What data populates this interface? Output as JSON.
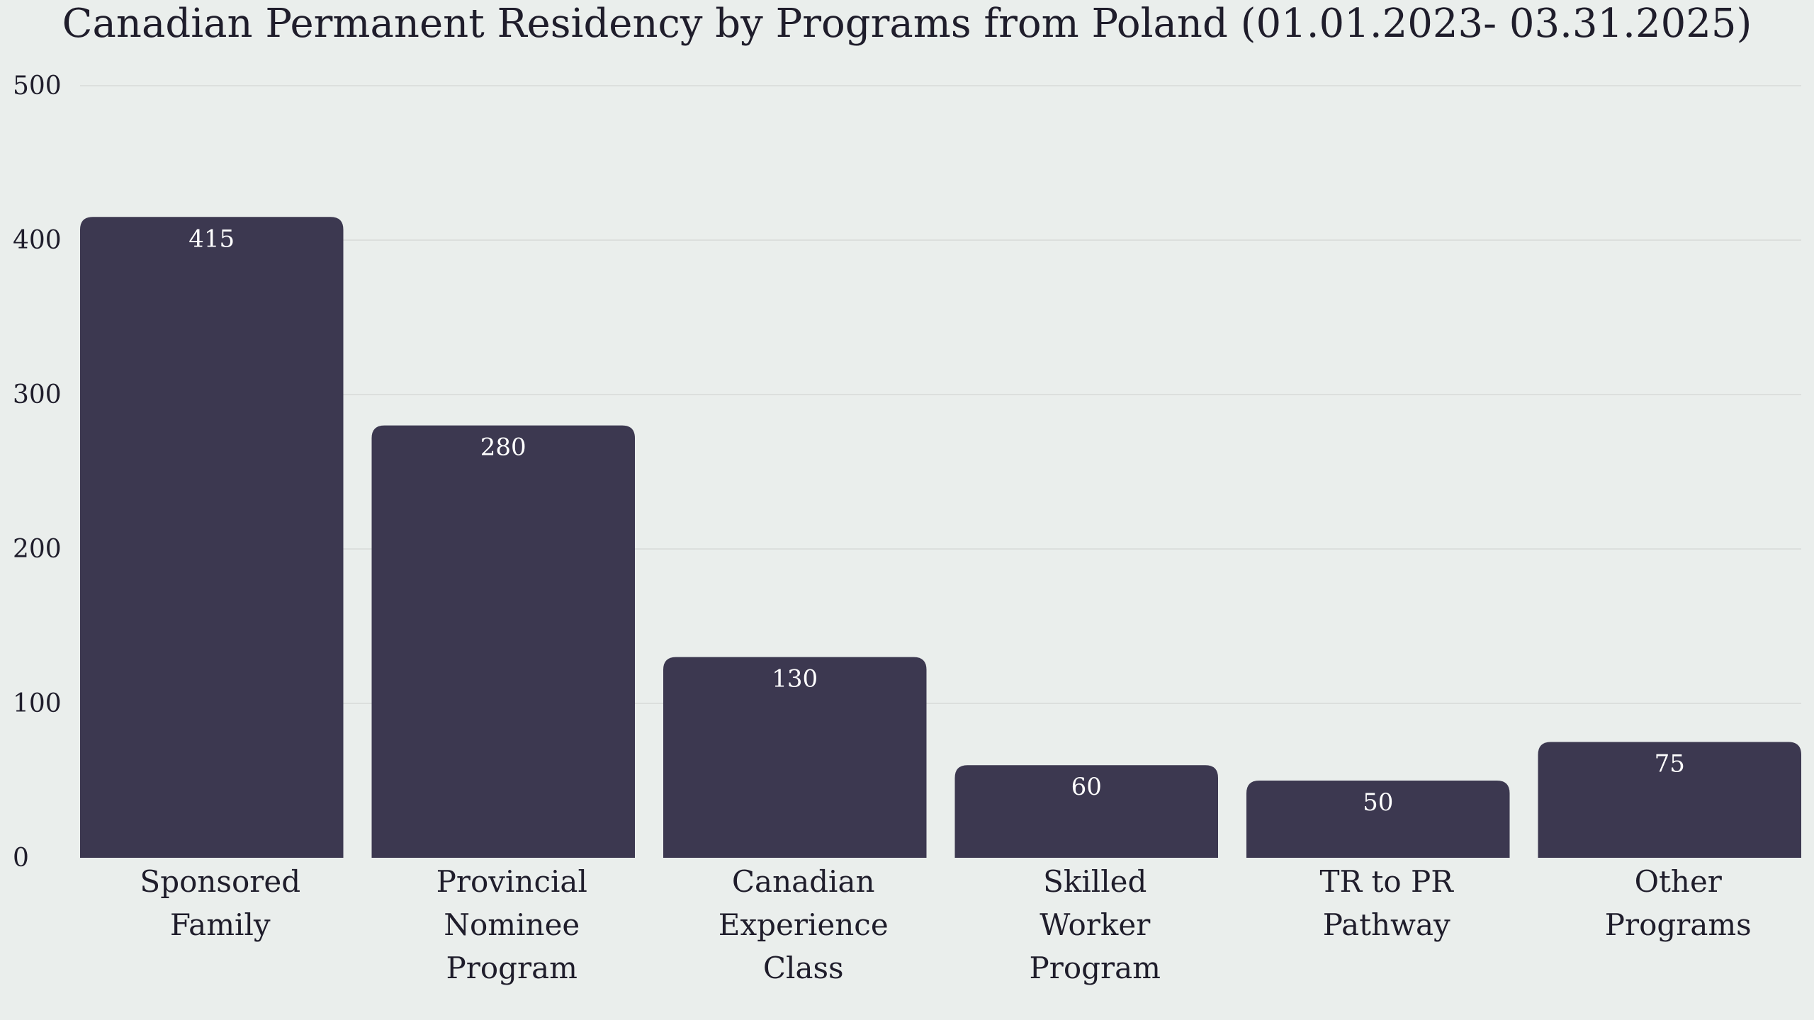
{
  "chart_data": {
    "type": "bar",
    "title": "Canadian Permanent Residency by Programs from Poland (01.01.2023- 03.31.2025)",
    "xlabel": "",
    "ylabel": "",
    "categories": [
      [
        "Sponsored",
        "Family"
      ],
      [
        "Provincial",
        "Nominee",
        "Program"
      ],
      [
        "Canadian",
        "Experience",
        "Class"
      ],
      [
        "Skilled",
        "Worker",
        "Program"
      ],
      [
        "TR to PR",
        "Pathway"
      ],
      [
        "Other",
        "Programs"
      ]
    ],
    "values": [
      415,
      280,
      130,
      60,
      50,
      75
    ],
    "ylim": [
      0,
      500
    ],
    "yticks": [
      0,
      100,
      200,
      300,
      400,
      500
    ],
    "grid": true,
    "legend": "none",
    "colors": {
      "bar": "#3c3850",
      "background": "#eaeeec",
      "text": "#1f1d2b",
      "data_label": "#ffffff"
    }
  }
}
